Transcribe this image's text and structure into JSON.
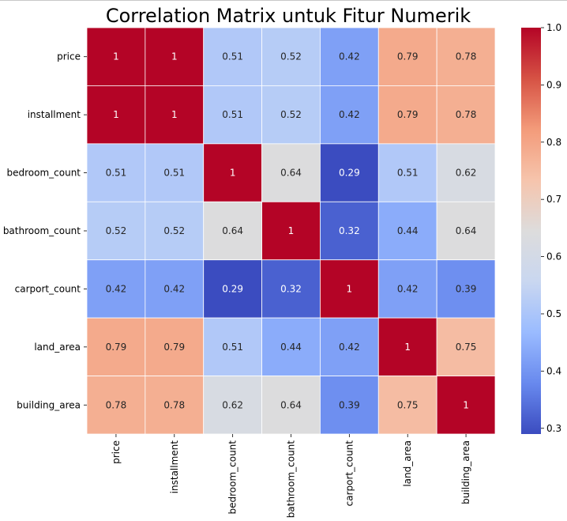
{
  "chart_data": {
    "type": "heatmap",
    "title": "Correlation Matrix untuk Fitur Numerik",
    "rows": [
      "price",
      "installment",
      "bedroom_count",
      "bathroom_count",
      "carport_count",
      "land_area",
      "building_area"
    ],
    "columns": [
      "price",
      "installment",
      "bedroom_count",
      "bathroom_count",
      "carport_count",
      "land_area",
      "building_area"
    ],
    "values": [
      [
        1,
        1,
        0.51,
        0.52,
        0.42,
        0.79,
        0.78
      ],
      [
        1,
        1,
        0.51,
        0.52,
        0.42,
        0.79,
        0.78
      ],
      [
        0.51,
        0.51,
        1,
        0.64,
        0.29,
        0.51,
        0.62
      ],
      [
        0.52,
        0.52,
        0.64,
        1,
        0.32,
        0.44,
        0.64
      ],
      [
        0.42,
        0.42,
        0.29,
        0.32,
        1,
        0.42,
        0.39
      ],
      [
        0.79,
        0.79,
        0.51,
        0.44,
        0.42,
        1,
        0.75
      ],
      [
        0.78,
        0.78,
        0.62,
        0.64,
        0.39,
        0.75,
        1
      ]
    ],
    "colormap": "coolwarm",
    "vmin": 0.29,
    "vmax": 1.0,
    "annotated": true,
    "colorbar": {
      "ticks": [
        0.3,
        0.4,
        0.5,
        0.6,
        0.7,
        0.8,
        0.9,
        1.0
      ],
      "tick_labels": [
        "0.3",
        "0.4",
        "0.5",
        "0.6",
        "0.7",
        "0.8",
        "0.9",
        "1.0"
      ],
      "placement": "right"
    },
    "grid_line_color": "#ffffff",
    "colormap_stops": [
      "#3b4cc0",
      "#6889ee",
      "#9abbff",
      "#c9d7f0",
      "#dddcdc",
      "#f6c4ac",
      "#f39b7a",
      "#d65244",
      "#b40426"
    ]
  }
}
